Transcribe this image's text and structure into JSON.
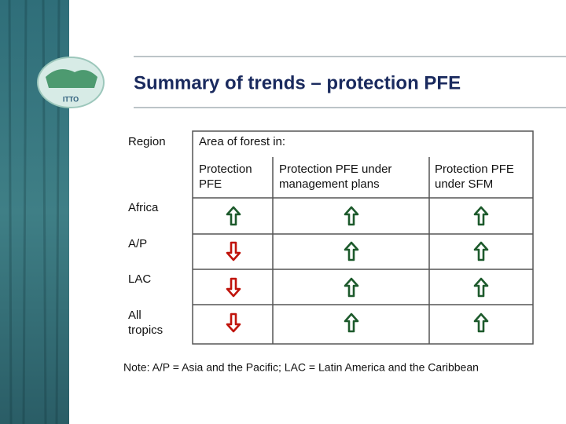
{
  "logo": {
    "text": "ITTO"
  },
  "header": {
    "title": "Summary of trends – protection PFE"
  },
  "table": {
    "region_header": "Region",
    "group_header": "Area of forest in:",
    "columns": [
      [
        "Protection",
        "PFE"
      ],
      [
        "Protection PFE under",
        "management plans"
      ],
      [
        "Protection PFE",
        "under SFM"
      ]
    ],
    "rows": [
      [
        "Africa"
      ],
      [
        "A/P"
      ],
      [
        "LAC"
      ],
      [
        "All",
        "tropics"
      ]
    ]
  },
  "note": "Note: A/P = Asia and the Pacific; LAC = Latin America and the Caribbean"
}
